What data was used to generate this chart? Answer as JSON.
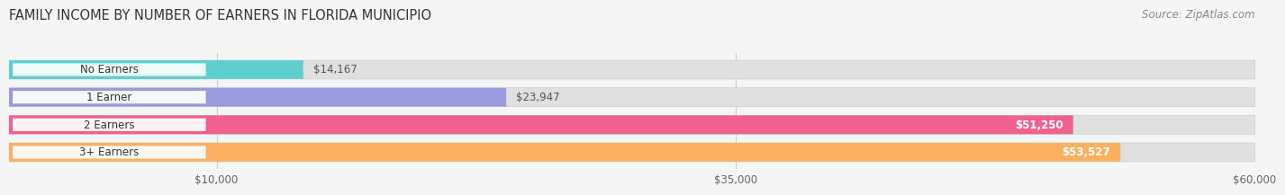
{
  "title": "FAMILY INCOME BY NUMBER OF EARNERS IN FLORIDA MUNICIPIO",
  "source": "Source: ZipAtlas.com",
  "categories": [
    "No Earners",
    "1 Earner",
    "2 Earners",
    "3+ Earners"
  ],
  "values": [
    14167,
    23947,
    51250,
    53527
  ],
  "bar_colors": [
    "#5ECFCF",
    "#9999DD",
    "#F06090",
    "#F9B060"
  ],
  "value_labels": [
    "$14,167",
    "$23,947",
    "$51,250",
    "$53,527"
  ],
  "value_label_inside": [
    false,
    false,
    true,
    true
  ],
  "x_ticks": [
    10000,
    35000,
    60000
  ],
  "x_tick_labels": [
    "$10,000",
    "$35,000",
    "$60,000"
  ],
  "xlim_max": 60000,
  "background_color": "#f5f5f5",
  "bar_bg_color": "#e0e0e0",
  "title_fontsize": 10.5,
  "source_fontsize": 8.5,
  "bar_height": 0.68,
  "bar_gap": 0.12
}
